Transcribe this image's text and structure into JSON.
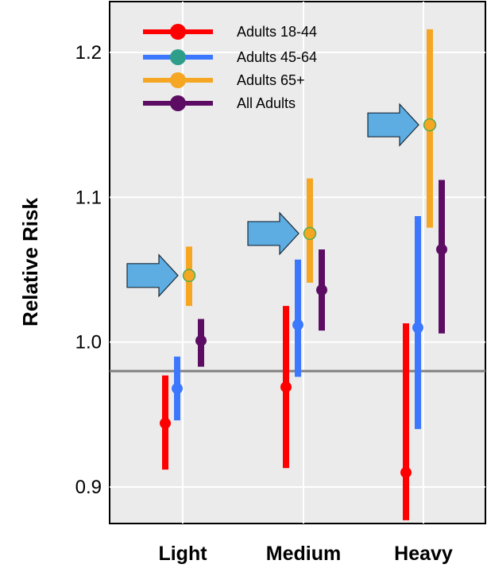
{
  "chart_data": {
    "type": "scatter",
    "ylabel": "Relative Risk",
    "categories": [
      "Light",
      "Medium",
      "Heavy"
    ],
    "yticks": [
      "0.9",
      "1.0",
      "1.1",
      "1.2"
    ],
    "ylim": [
      0.875,
      1.225
    ],
    "reference_line": 0.98,
    "grid": true,
    "legend_position": "top-left",
    "series": [
      {
        "name": "Adults 18-44",
        "color": "#ff0000",
        "points": [
          {
            "category": "Light",
            "estimate": 0.944,
            "lower": 0.912,
            "upper": 0.977
          },
          {
            "category": "Medium",
            "estimate": 0.969,
            "lower": 0.913,
            "upper": 1.025
          },
          {
            "category": "Heavy",
            "estimate": 0.91,
            "lower": 0.877,
            "upper": 1.013
          }
        ]
      },
      {
        "name": "Adults 45-64",
        "color": "#3c78ff",
        "points": [
          {
            "category": "Light",
            "estimate": 0.968,
            "lower": 0.946,
            "upper": 0.99
          },
          {
            "category": "Medium",
            "estimate": 1.012,
            "lower": 0.976,
            "upper": 1.057
          },
          {
            "category": "Heavy",
            "estimate": 1.01,
            "lower": 0.94,
            "upper": 1.087
          }
        ]
      },
      {
        "name": "Adults 65+",
        "color": "#f5a623",
        "marker_edge": "#4caf50",
        "points": [
          {
            "category": "Light",
            "estimate": 1.046,
            "lower": 1.025,
            "upper": 1.066
          },
          {
            "category": "Medium",
            "estimate": 1.075,
            "lower": 1.041,
            "upper": 1.113
          },
          {
            "category": "Heavy",
            "estimate": 1.15,
            "lower": 1.079,
            "upper": 1.216
          }
        ]
      },
      {
        "name": "All Adults",
        "color": "#5c0d63",
        "points": [
          {
            "category": "Light",
            "estimate": 1.001,
            "lower": 0.983,
            "upper": 1.016
          },
          {
            "category": "Medium",
            "estimate": 1.036,
            "lower": 1.008,
            "upper": 1.064
          },
          {
            "category": "Heavy",
            "estimate": 1.064,
            "lower": 1.006,
            "upper": 1.112
          }
        ]
      }
    ],
    "annotations": [
      {
        "type": "arrow",
        "points_to": "Adults 65+",
        "category": "Light",
        "color": "#5dade2"
      },
      {
        "type": "arrow",
        "points_to": "Adults 65+",
        "category": "Medium",
        "color": "#5dade2"
      },
      {
        "type": "arrow",
        "points_to": "Adults 65+",
        "category": "Heavy",
        "color": "#5dade2"
      }
    ]
  }
}
